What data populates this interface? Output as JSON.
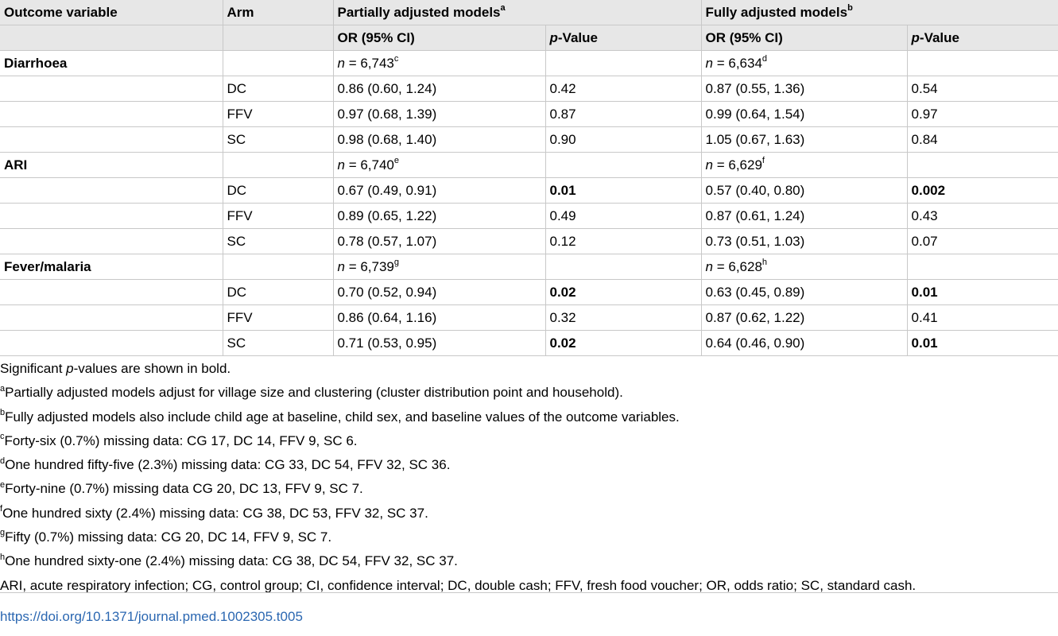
{
  "header": {
    "outcome": "Outcome variable",
    "arm": "Arm",
    "partial": "Partially adjusted models",
    "partial_sup": "a",
    "full": "Fully adjusted models",
    "full_sup": "b",
    "or_label": "OR (95% CI)",
    "p_label_italic": "p",
    "p_label_rest": "-Value"
  },
  "groups": [
    {
      "name": "Diarrhoea",
      "n_partial": "6,743",
      "n_partial_sup": "c",
      "n_full": "6,634",
      "n_full_sup": "d",
      "rows": [
        {
          "arm": "DC",
          "or_partial": "0.86 (0.60, 1.24)",
          "p_partial": "0.42",
          "p_partial_bold": false,
          "or_full": "0.87 (0.55, 1.36)",
          "p_full": "0.54",
          "p_full_bold": false
        },
        {
          "arm": "FFV",
          "or_partial": "0.97 (0.68, 1.39)",
          "p_partial": "0.87",
          "p_partial_bold": false,
          "or_full": "0.99 (0.64, 1.54)",
          "p_full": "0.97",
          "p_full_bold": false
        },
        {
          "arm": "SC",
          "or_partial": "0.98 (0.68, 1.40)",
          "p_partial": "0.90",
          "p_partial_bold": false,
          "or_full": "1.05 (0.67, 1.63)",
          "p_full": "0.84",
          "p_full_bold": false
        }
      ]
    },
    {
      "name": "ARI",
      "n_partial": "6,740",
      "n_partial_sup": "e",
      "n_full": "6,629",
      "n_full_sup": "f",
      "rows": [
        {
          "arm": "DC",
          "or_partial": "0.67 (0.49, 0.91)",
          "p_partial": "0.01",
          "p_partial_bold": true,
          "or_full": "0.57 (0.40, 0.80)",
          "p_full": "0.002",
          "p_full_bold": true
        },
        {
          "arm": "FFV",
          "or_partial": "0.89 (0.65, 1.22)",
          "p_partial": "0.49",
          "p_partial_bold": false,
          "or_full": "0.87 (0.61, 1.24)",
          "p_full": "0.43",
          "p_full_bold": false
        },
        {
          "arm": "SC",
          "or_partial": "0.78 (0.57, 1.07)",
          "p_partial": "0.12",
          "p_partial_bold": false,
          "or_full": "0.73 (0.51, 1.03)",
          "p_full": "0.07",
          "p_full_bold": false
        }
      ]
    },
    {
      "name": "Fever/malaria",
      "n_partial": "6,739",
      "n_partial_sup": "g",
      "n_full": "6,628",
      "n_full_sup": "h",
      "rows": [
        {
          "arm": "DC",
          "or_partial": "0.70 (0.52, 0.94)",
          "p_partial": "0.02",
          "p_partial_bold": true,
          "or_full": "0.63 (0.45, 0.89)",
          "p_full": "0.01",
          "p_full_bold": true
        },
        {
          "arm": "FFV",
          "or_partial": "0.86 (0.64, 1.16)",
          "p_partial": "0.32",
          "p_partial_bold": false,
          "or_full": "0.87 (0.62, 1.22)",
          "p_full": "0.41",
          "p_full_bold": false
        },
        {
          "arm": "SC",
          "or_partial": "0.71 (0.53, 0.95)",
          "p_partial": "0.02",
          "p_partial_bold": true,
          "or_full": "0.64 (0.46, 0.90)",
          "p_full": "0.01",
          "p_full_bold": true
        }
      ]
    }
  ],
  "notes": {
    "sig_before": "Significant ",
    "sig_italic": "p",
    "sig_after": "-values are shown in bold.",
    "footnotes": [
      {
        "mark": "a",
        "text": "Partially adjusted models adjust for village size and clustering (cluster distribution point and household)."
      },
      {
        "mark": "b",
        "text": "Fully adjusted models also include child age at baseline, child sex, and baseline values of the outcome variables."
      },
      {
        "mark": "c",
        "text": "Forty-six (0.7%) missing data: CG 17, DC 14, FFV 9, SC 6."
      },
      {
        "mark": "d",
        "text": "One hundred fifty-five (2.3%) missing data: CG 33, DC 54, FFV 32, SC 36."
      },
      {
        "mark": "e",
        "text": "Forty-nine (0.7%) missing data CG 20, DC 13, FFV 9, SC 7."
      },
      {
        "mark": "f",
        "text": "One hundred sixty (2.4%) missing data: CG 38, DC 53, FFV 32, SC 37."
      },
      {
        "mark": "g",
        "text": "Fifty (0.7%) missing data: CG 20, DC 14, FFV 9, SC 7."
      },
      {
        "mark": "h",
        "text": "One hundred sixty-one (2.4%) missing data: CG 38, DC 54, FFV 32, SC 37."
      }
    ],
    "abbreviations": "ARI, acute respiratory infection; CG, control group; CI, confidence interval; DC, double cash; FFV, fresh food voucher; OR, odds ratio; SC, standard cash."
  },
  "doi": "https://doi.org/10.1371/journal.pmed.1002305.t005",
  "colors": {
    "header_bg": "#e7e7e7",
    "border": "#c8c8c8",
    "link": "#2b67b1"
  }
}
